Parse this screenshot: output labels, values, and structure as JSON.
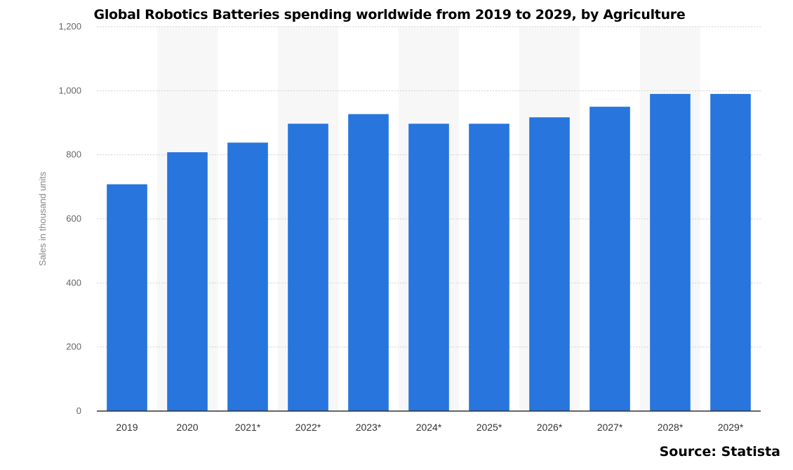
{
  "chart_data": {
    "type": "bar",
    "title": "Global Robotics Batteries spending worldwide from 2019 to 2029, by Agriculture",
    "categories": [
      "2019",
      "2020",
      "2021*",
      "2022*",
      "2023*",
      "2024*",
      "2025*",
      "2026*",
      "2027*",
      "2028*",
      "2029*"
    ],
    "values": [
      708,
      808,
      838,
      897,
      927,
      897,
      897,
      917,
      950,
      990,
      990
    ],
    "xlabel": "",
    "ylabel": "Sales in thousand units",
    "ylim": [
      0,
      1200
    ],
    "yticks": [
      0,
      200,
      400,
      600,
      800,
      1000,
      1200
    ],
    "ytick_labels": [
      "0",
      "200",
      "400",
      "600",
      "800",
      "1,000",
      "1,200"
    ],
    "grid": true,
    "bar_color": "#2775dd",
    "source": "Source: Statista"
  }
}
